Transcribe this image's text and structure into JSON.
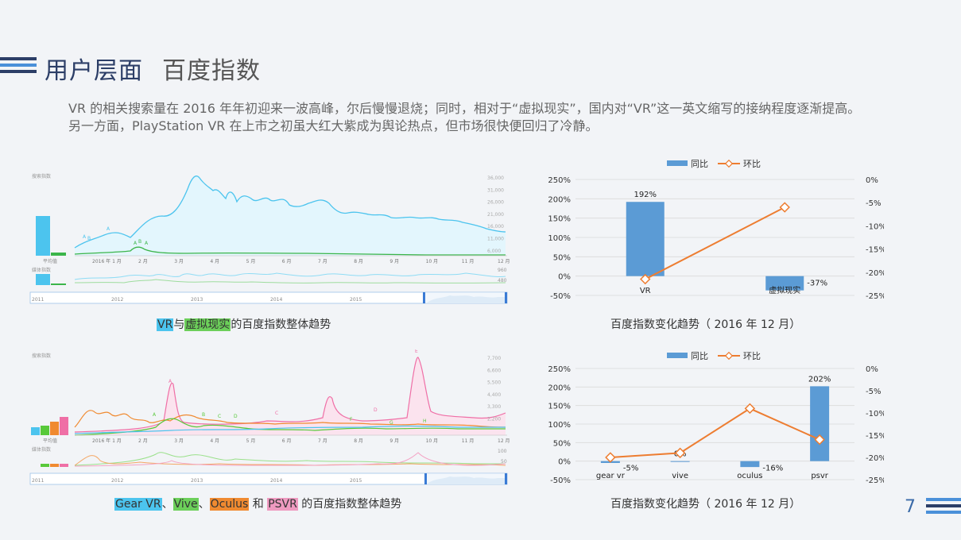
{
  "header": {
    "title": "用户层面",
    "subtitle": "百度指数",
    "colors": {
      "stripe1": "#2c3e67",
      "stripe2": "#4a90d9",
      "stripe3": "#2c3e67"
    }
  },
  "intro": "VR 的相关搜索量在 2016 年年初迎来一波高峰，尔后慢慢退烧；同时，相对于“虚拟现实”，国内对“VR”这一英文缩写的接纳程度逐渐提高。另一方面，PlayStation VR 在上市之初虽大红大紫成为舆论热点，但市场很快便回归了冷静。",
  "page_number": "7",
  "trend1": {
    "search_label": "搜索指数",
    "avg_label": "平均值",
    "media_label": "媒体指数",
    "y_ticks": [
      "36,000",
      "31,000",
      "26,000",
      "21,000",
      "16,000",
      "11,000",
      "6,000"
    ],
    "media_ticks": [
      "960",
      "480"
    ],
    "months": [
      "2016 年 1 月",
      "2 月",
      "3 月",
      "4 月",
      "5 月",
      "6 月",
      "7 月",
      "8 月",
      "9 月",
      "10 月",
      "11 月",
      "12 月"
    ],
    "years": [
      "2011",
      "2012",
      "2013",
      "2014",
      "2015"
    ],
    "caption": {
      "part1": "VR",
      "part2": "与",
      "part3": "虚拟现实",
      "part4": "的百度指数整体趋势"
    },
    "colors": {
      "vr": "#4cc4ee",
      "vr_fill": "#e3f6fd",
      "xn": "#3bb54a"
    }
  },
  "trend2": {
    "search_label": "搜索指数",
    "avg_label": "平均值",
    "media_label": "媒体指数",
    "y_ticks": [
      "7,700",
      "6,600",
      "5,500",
      "4,400",
      "3,300",
      "2,200"
    ],
    "media_ticks": [
      "100",
      "50"
    ],
    "months": [
      "2016 年 1 月",
      "2 月",
      "3 月",
      "4 月",
      "5 月",
      "6 月",
      "7 月",
      "8 月",
      "9 月",
      "10 月",
      "11 月",
      "12 月"
    ],
    "years": [
      "2011",
      "2012",
      "2013",
      "2014",
      "2015"
    ],
    "caption": {
      "p1": "Gear VR",
      "p2": "、",
      "p3": "Vive",
      "p4": "、",
      "p5": "Oculus",
      "p6": " 和 ",
      "p7": "PSVR",
      "p8": " 的百度指数整体趋势"
    },
    "colors": {
      "gear": "#4cc4ee",
      "vive": "#58c93a",
      "oculus": "#f08a30",
      "psvr": "#ef6fa6"
    }
  },
  "chart_data": [
    {
      "type": "bar",
      "title": "百度指数变化趋势（ 2016 年 12 月）",
      "categories": [
        "VR",
        "虚拟现实"
      ],
      "legend": {
        "placement": "top-center"
      },
      "series": [
        {
          "name": "同比",
          "chart": "bar",
          "axis": "left",
          "values": [
            192,
            -37
          ],
          "labels": [
            "192%",
            "-37%"
          ],
          "color": "#5b9bd5"
        },
        {
          "name": "环比",
          "chart": "line",
          "axis": "right",
          "values": [
            -21.5,
            -6
          ],
          "color": "#ed7d31"
        }
      ],
      "y_left": {
        "ticks": [
          "250%",
          "200%",
          "150%",
          "100%",
          "50%",
          "0%",
          "-50%"
        ],
        "lim": [
          -50,
          250
        ]
      },
      "y_right": {
        "ticks": [
          "0%",
          "-5%",
          "-10%",
          "-15%",
          "-20%",
          "-25%"
        ],
        "lim": [
          -25,
          0
        ]
      }
    },
    {
      "type": "bar",
      "title": "百度指数变化趋势（ 2016 年 12 月）",
      "categories": [
        "gear vr",
        "vive",
        "oculus",
        "psvr"
      ],
      "legend": {
        "placement": "top-center"
      },
      "series": [
        {
          "name": "同比",
          "chart": "bar",
          "axis": "left",
          "values": [
            -5,
            0,
            -16,
            202
          ],
          "labels": [
            "-5%",
            "0%",
            "-16%",
            "202%"
          ],
          "color": "#5b9bd5"
        },
        {
          "name": "环比",
          "chart": "line",
          "axis": "right",
          "values": [
            -20,
            -19,
            -9,
            -16
          ],
          "color": "#ed7d31"
        }
      ],
      "y_left": {
        "ticks": [
          "250%",
          "200%",
          "150%",
          "100%",
          "50%",
          "0%",
          "-50%"
        ],
        "lim": [
          -50,
          250
        ]
      },
      "y_right": {
        "ticks": [
          "0%",
          "-5%",
          "-10%",
          "-15%",
          "-20%",
          "-25%"
        ],
        "lim": [
          -25,
          0
        ]
      }
    }
  ]
}
